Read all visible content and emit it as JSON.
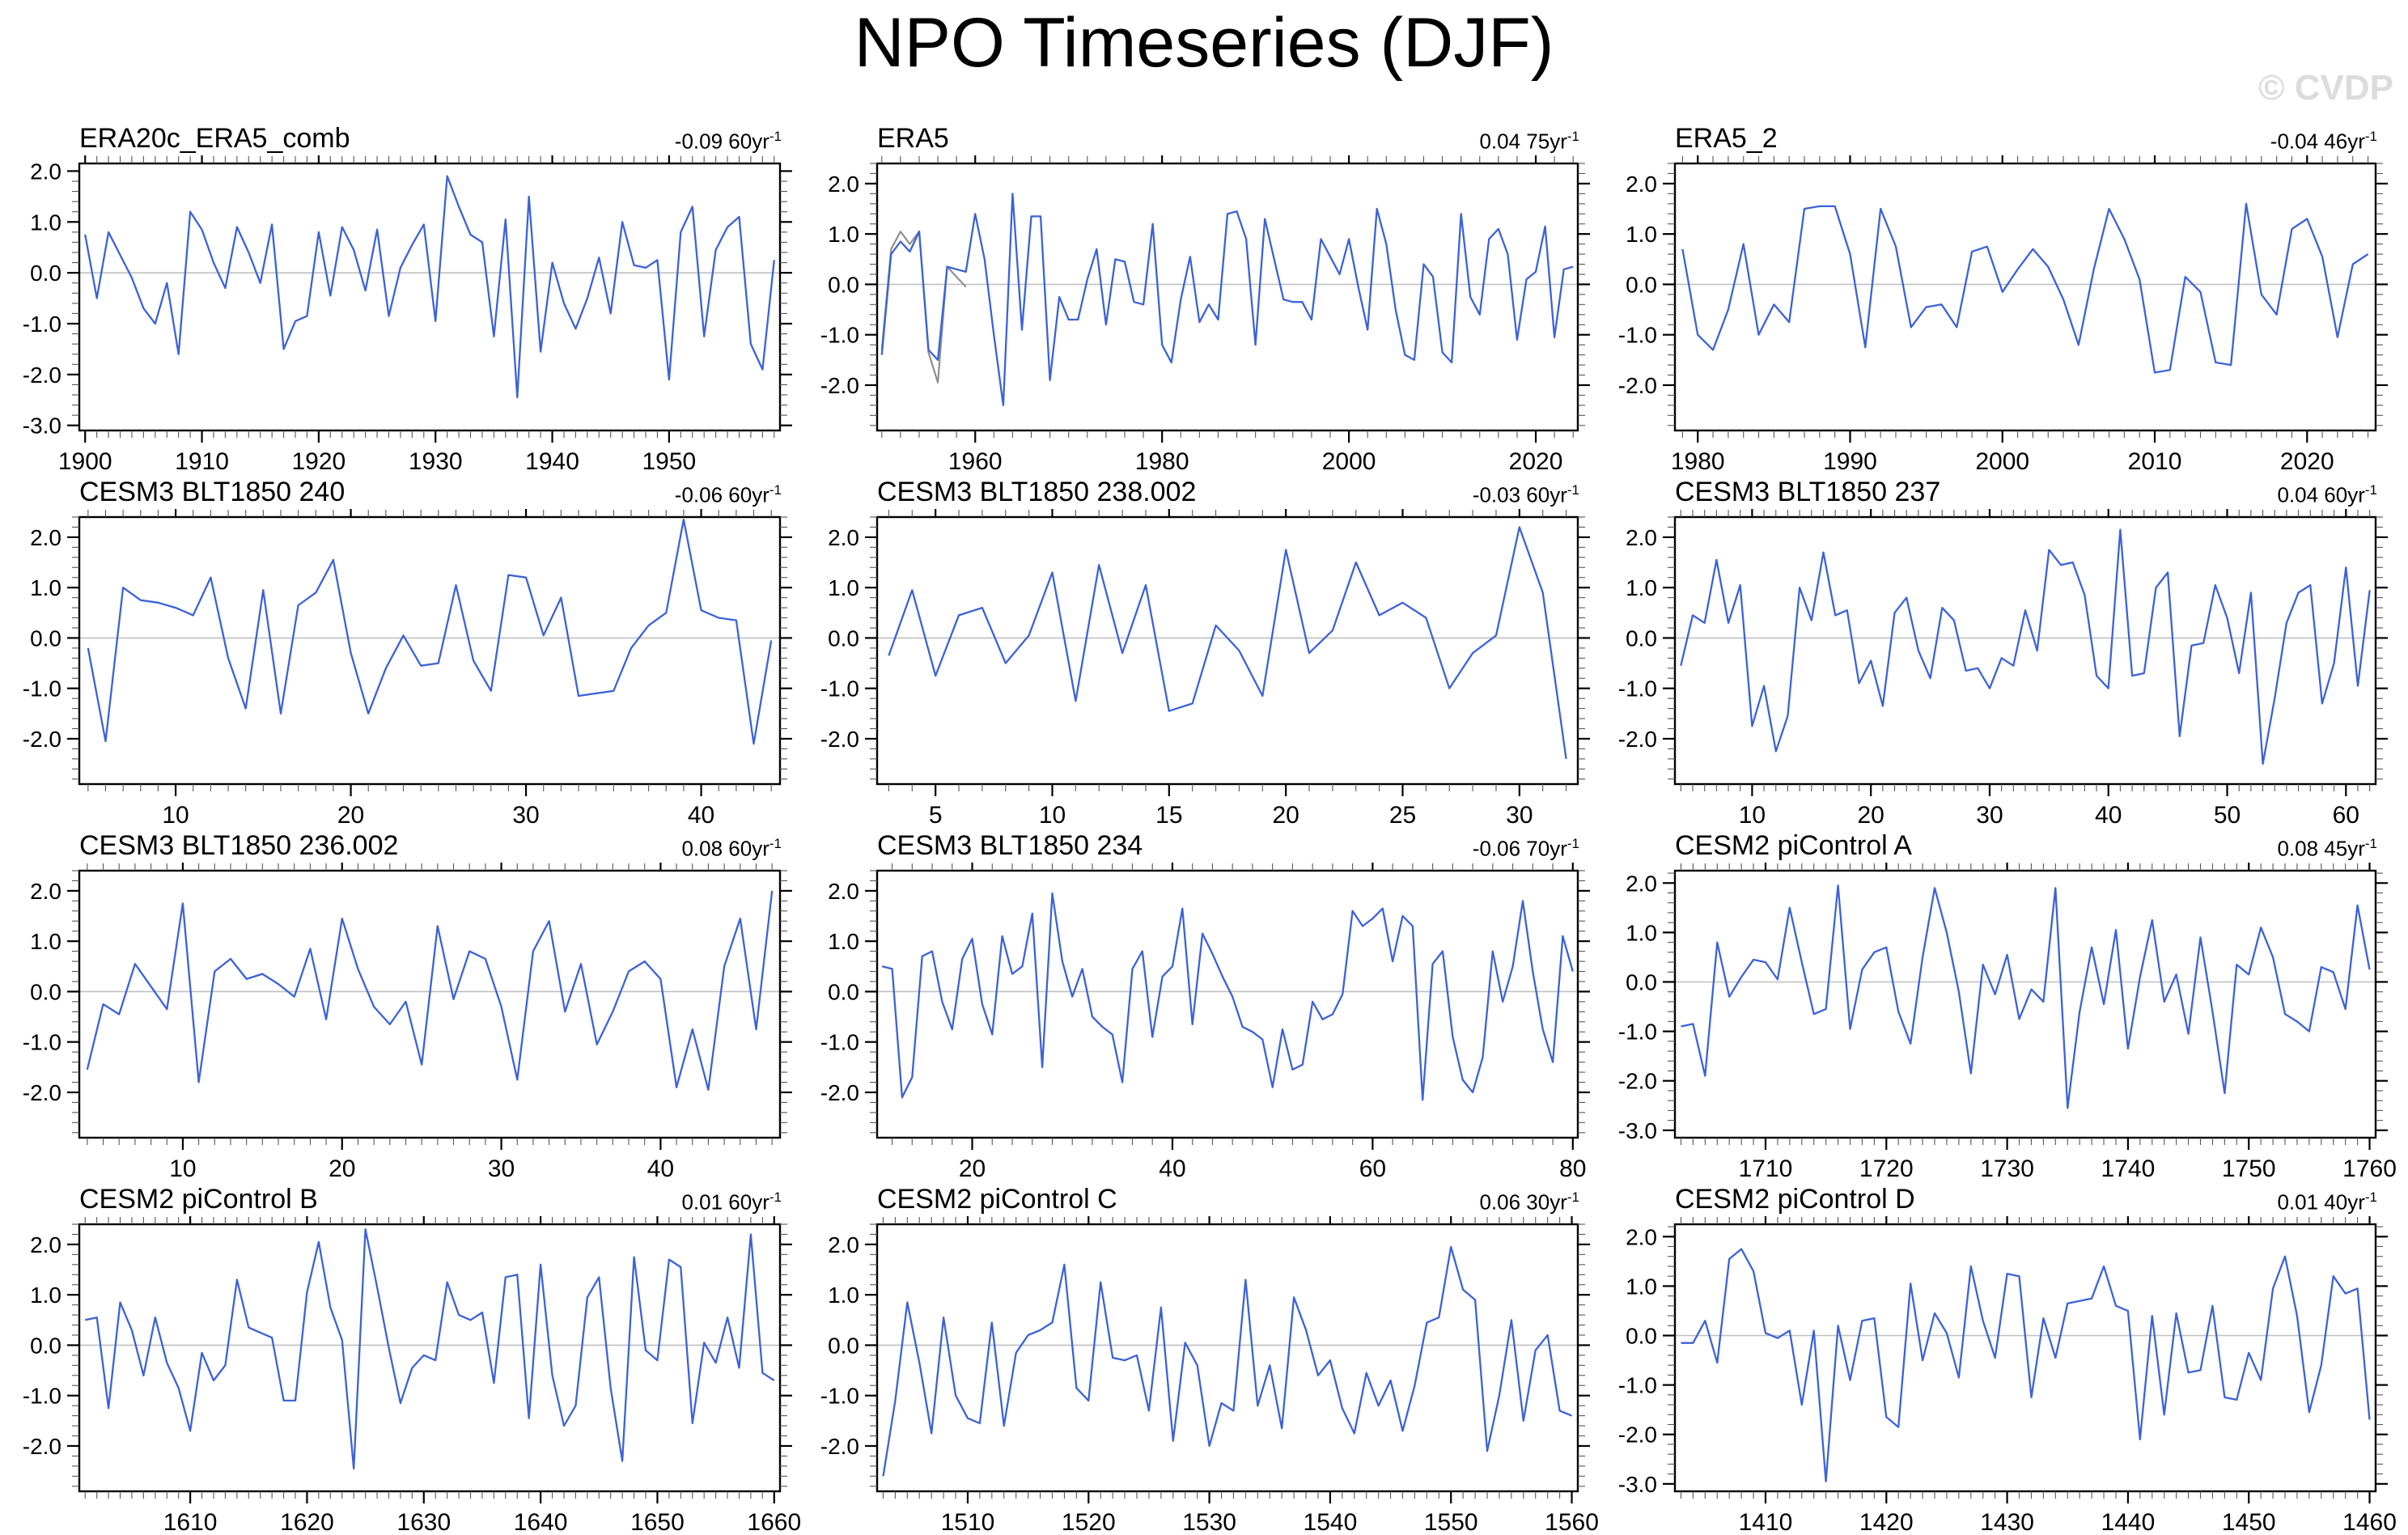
{
  "page": {
    "title": "NPO Timeseries (DJF)",
    "watermark": "© CVDP"
  },
  "colors": {
    "line": "#3c62d6",
    "gray_line": "#8f8f8f",
    "zero_line": "#c0c0c0",
    "axis": "#000000",
    "minor_tick": "#555555",
    "watermark": "#dcdcdc"
  },
  "chart_data": [
    {
      "type": "line",
      "title": "ERA20c_ERA5_comb",
      "trend": {
        "value": "-0.09",
        "per": "60yr",
        "exp": "-1"
      },
      "x0": 1900,
      "xlim": [
        1899.5,
        1959.5
      ],
      "ylim": [
        -3.1,
        2.15
      ],
      "xticks": [
        1900,
        1910,
        1920,
        1930,
        1940,
        1950
      ],
      "x_minor_step": 1,
      "yticks": [
        2,
        1,
        0,
        -1,
        -2,
        -3
      ],
      "y_minor_step": 0.2,
      "values": [
        0.75,
        -0.5,
        0.8,
        0.35,
        -0.1,
        -0.7,
        -1.0,
        -0.2,
        -1.6,
        1.2,
        0.85,
        0.2,
        -0.3,
        0.9,
        0.4,
        -0.2,
        0.95,
        -1.5,
        -0.95,
        -0.85,
        0.8,
        -0.45,
        0.9,
        0.45,
        -0.35,
        0.85,
        -0.85,
        0.1,
        0.55,
        0.95,
        -0.95,
        1.9,
        1.3,
        0.75,
        0.6,
        -1.25,
        1.05,
        -2.45,
        1.5,
        -1.55,
        0.2,
        -0.6,
        -1.1,
        -0.5,
        0.3,
        -0.8,
        1.0,
        0.15,
        0.1,
        0.25,
        -2.1,
        0.8,
        1.3,
        -1.25,
        0.45,
        0.9,
        1.1,
        -1.4,
        -1.9,
        0.25
      ]
    },
    {
      "type": "line",
      "title": "ERA5",
      "trend": {
        "value": "0.04",
        "per": "75yr",
        "exp": "-1"
      },
      "x0": 1950,
      "xlim": [
        1949.5,
        2024.5
      ],
      "ylim": [
        -2.9,
        2.4
      ],
      "xticks": [
        1960,
        1980,
        2000,
        2020
      ],
      "x_minor_step": 2,
      "yticks": [
        2,
        1,
        0,
        -1,
        -2
      ],
      "y_minor_step": 0.2,
      "values": [
        -1.4,
        0.6,
        0.85,
        0.65,
        1.05,
        -1.3,
        -1.5,
        0.35,
        0.3,
        0.25,
        1.4,
        0.5,
        -1.0,
        -2.4,
        1.8,
        -0.9,
        1.35,
        1.35,
        -1.9,
        -0.25,
        -0.7,
        -0.7,
        0.1,
        0.7,
        -0.8,
        0.5,
        0.45,
        -0.35,
        -0.4,
        1.2,
        -1.2,
        -1.55,
        -0.3,
        0.55,
        -0.75,
        -0.4,
        -0.7,
        1.4,
        1.45,
        0.9,
        -1.2,
        1.3,
        0.5,
        -0.3,
        -0.35,
        -0.35,
        -0.7,
        0.9,
        0.55,
        0.2,
        0.9,
        -0.05,
        -0.9,
        1.5,
        0.8,
        -0.5,
        -1.4,
        -1.5,
        0.4,
        0.15,
        -1.35,
        -1.55,
        1.4,
        -0.25,
        -0.6,
        0.9,
        1.1,
        0.6,
        -1.1,
        0.1,
        0.25,
        1.15,
        -1.05,
        0.3,
        0.35
      ],
      "gray_x0": 1950,
      "gray_values": [
        -1.3,
        0.7,
        1.05,
        0.8,
        1.05,
        -1.35,
        -1.95,
        0.35,
        0.15,
        -0.05
      ]
    },
    {
      "type": "line",
      "title": "ERA5_2",
      "trend": {
        "value": "-0.04",
        "per": "46yr",
        "exp": "-1"
      },
      "x0": 1979,
      "xlim": [
        1978.5,
        2024.5
      ],
      "ylim": [
        -2.9,
        2.4
      ],
      "xticks": [
        1980,
        1990,
        2000,
        2010,
        2020
      ],
      "x_minor_step": 1,
      "yticks": [
        2,
        1,
        0,
        -1,
        -2
      ],
      "y_minor_step": 0.2,
      "values": [
        0.7,
        -1.0,
        -1.3,
        -0.5,
        0.8,
        -1.0,
        -0.4,
        -0.75,
        1.5,
        1.55,
        1.55,
        0.6,
        -1.25,
        1.5,
        0.75,
        -0.85,
        -0.45,
        -0.4,
        -0.85,
        0.65,
        0.75,
        -0.15,
        0.3,
        0.7,
        0.35,
        -0.3,
        -1.2,
        0.3,
        1.5,
        0.9,
        0.1,
        -1.75,
        -1.7,
        0.15,
        -0.15,
        -1.55,
        -1.6,
        1.6,
        -0.2,
        -0.6,
        1.1,
        1.3,
        0.55,
        -1.05,
        0.4,
        0.6
      ]
    },
    {
      "type": "line",
      "title": "CESM3 BLT1850 240",
      "trend": {
        "value": "-0.06",
        "per": "60yr",
        "exp": "-1"
      },
      "x0": 5,
      "xlim": [
        4.5,
        44.5
      ],
      "ylim": [
        -2.9,
        2.4
      ],
      "xticks": [
        10,
        20,
        30,
        40
      ],
      "x_minor_step": 1,
      "yticks": [
        2,
        1,
        0,
        -1,
        -2
      ],
      "y_minor_step": 0.2,
      "values": [
        -0.2,
        -2.05,
        1.0,
        0.75,
        0.7,
        0.6,
        0.45,
        1.2,
        -0.4,
        -1.4,
        0.95,
        -1.5,
        0.65,
        0.9,
        1.55,
        -0.3,
        -1.5,
        -0.6,
        0.05,
        -0.55,
        -0.5,
        1.05,
        -0.45,
        -1.05,
        1.25,
        1.2,
        0.05,
        0.8,
        -1.15,
        -1.1,
        -1.05,
        -0.2,
        0.25,
        0.5,
        2.35,
        0.55,
        0.4,
        0.35,
        -2.1,
        -0.05
      ]
    },
    {
      "type": "line",
      "title": "CESM3 BLT1850 238.002",
      "trend": {
        "value": "-0.03",
        "per": "60yr",
        "exp": "-1"
      },
      "x0": 3,
      "xlim": [
        2.5,
        32.5
      ],
      "ylim": [
        -2.9,
        2.4
      ],
      "xticks": [
        5,
        10,
        15,
        20,
        25,
        30
      ],
      "x_minor_step": 1,
      "yticks": [
        2,
        1,
        0,
        -1,
        -2
      ],
      "y_minor_step": 0.2,
      "values": [
        -0.35,
        0.95,
        -0.75,
        0.45,
        0.6,
        -0.5,
        0.05,
        1.3,
        -1.25,
        1.45,
        -0.3,
        1.05,
        -1.45,
        -1.3,
        0.25,
        -0.25,
        -1.15,
        1.75,
        -0.3,
        0.15,
        1.5,
        0.45,
        0.7,
        0.4,
        -1.0,
        -0.3,
        0.05,
        2.2,
        0.9,
        -2.4
      ]
    },
    {
      "type": "line",
      "title": "CESM3 BLT1850 237",
      "trend": {
        "value": "0.04",
        "per": "60yr",
        "exp": "-1"
      },
      "x0": 4,
      "xlim": [
        3.5,
        62.5
      ],
      "ylim": [
        -2.9,
        2.4
      ],
      "xticks": [
        10,
        20,
        30,
        40,
        50,
        60
      ],
      "x_minor_step": 1,
      "yticks": [
        2,
        1,
        0,
        -1,
        -2
      ],
      "y_minor_step": 0.2,
      "values": [
        -0.55,
        0.45,
        0.3,
        1.55,
        0.3,
        1.05,
        -1.75,
        -0.95,
        -2.25,
        -1.55,
        1.0,
        0.35,
        1.7,
        0.45,
        0.55,
        -0.9,
        -0.45,
        -1.35,
        0.5,
        0.8,
        -0.25,
        -0.8,
        0.6,
        0.35,
        -0.65,
        -0.6,
        -1.0,
        -0.4,
        -0.55,
        0.55,
        -0.25,
        1.75,
        1.45,
        1.5,
        0.85,
        -0.75,
        -1.0,
        2.15,
        -0.75,
        -0.7,
        1.0,
        1.3,
        -1.95,
        -0.15,
        -0.1,
        1.05,
        0.4,
        -0.7,
        0.9,
        -2.5,
        -1.2,
        0.3,
        0.9,
        1.05,
        -1.3,
        -0.5,
        1.4,
        -0.95,
        0.95
      ]
    },
    {
      "type": "line",
      "title": "CESM3 BLT1850 236.002",
      "trend": {
        "value": "0.08",
        "per": "60yr",
        "exp": "-1"
      },
      "x0": 4,
      "xlim": [
        3.5,
        47.5
      ],
      "ylim": [
        -2.9,
        2.4
      ],
      "xticks": [
        10,
        20,
        30,
        40
      ],
      "x_minor_step": 1,
      "yticks": [
        2,
        1,
        0,
        -1,
        -2
      ],
      "y_minor_step": 0.2,
      "values": [
        -1.55,
        -0.25,
        -0.45,
        0.55,
        0.1,
        -0.35,
        1.75,
        -1.8,
        0.4,
        0.65,
        0.25,
        0.35,
        0.15,
        -0.1,
        0.85,
        -0.55,
        1.45,
        0.45,
        -0.3,
        -0.65,
        -0.2,
        -1.45,
        1.3,
        -0.15,
        0.8,
        0.65,
        -0.3,
        -1.75,
        0.8,
        1.4,
        -0.4,
        0.55,
        -1.05,
        -0.4,
        0.4,
        0.6,
        0.25,
        -1.9,
        -0.75,
        -1.95,
        0.5,
        1.45,
        -0.75,
        2.0
      ]
    },
    {
      "type": "line",
      "title": "CESM3 BLT1850 234",
      "trend": {
        "value": "-0.06",
        "per": "70yr",
        "exp": "-1"
      },
      "x0": 11,
      "xlim": [
        10.5,
        80.5
      ],
      "ylim": [
        -2.9,
        2.4
      ],
      "xticks": [
        20,
        40,
        60,
        80
      ],
      "x_minor_step": 2,
      "yticks": [
        2,
        1,
        0,
        -1,
        -2
      ],
      "y_minor_step": 0.2,
      "values": [
        0.5,
        0.45,
        -2.1,
        -1.7,
        0.7,
        0.8,
        -0.2,
        -0.75,
        0.65,
        1.05,
        -0.25,
        -0.85,
        1.1,
        0.35,
        0.5,
        1.55,
        -1.5,
        1.95,
        0.6,
        -0.1,
        0.45,
        -0.5,
        -0.7,
        -0.85,
        -1.8,
        0.45,
        0.8,
        -0.9,
        0.3,
        0.5,
        1.65,
        -0.65,
        1.15,
        0.75,
        0.3,
        -0.1,
        -0.7,
        -0.8,
        -0.95,
        -1.9,
        -0.75,
        -1.55,
        -1.45,
        -0.2,
        -0.55,
        -0.45,
        -0.05,
        1.6,
        1.3,
        1.45,
        1.65,
        0.6,
        1.5,
        1.3,
        -2.15,
        0.55,
        0.8,
        -0.9,
        -1.75,
        -2.0,
        -1.3,
        0.8,
        -0.2,
        0.5,
        1.8,
        0.4,
        -0.75,
        -1.4,
        1.1,
        0.4
      ]
    },
    {
      "type": "line",
      "title": "CESM2 piControl A",
      "trend": {
        "value": "0.08",
        "per": "45yr",
        "exp": "-1"
      },
      "x0": 1703,
      "xlim": [
        1702.5,
        1760.5
      ],
      "ylim": [
        -3.15,
        2.25
      ],
      "xticks": [
        1710,
        1720,
        1730,
        1740,
        1750,
        1760
      ],
      "x_minor_step": 1,
      "yticks": [
        2,
        1,
        0,
        -1,
        -2,
        -3
      ],
      "y_minor_step": 0.2,
      "values": [
        -0.9,
        -0.85,
        -1.9,
        0.8,
        -0.3,
        0.1,
        0.45,
        0.4,
        0.05,
        1.5,
        0.4,
        -0.65,
        -0.55,
        1.95,
        -0.95,
        0.25,
        0.6,
        0.7,
        -0.6,
        -1.25,
        0.5,
        1.9,
        1.0,
        -0.2,
        -1.85,
        0.35,
        -0.25,
        0.55,
        -0.75,
        -0.15,
        -0.4,
        1.9,
        -2.55,
        -0.6,
        0.7,
        -0.45,
        1.05,
        -1.35,
        0.1,
        1.25,
        -0.4,
        0.15,
        -1.05,
        0.9,
        -0.6,
        -2.25,
        0.35,
        0.15,
        1.1,
        0.5,
        -0.65,
        -0.8,
        -1.0,
        0.3,
        0.2,
        -0.55,
        1.55,
        0.25
      ]
    },
    {
      "type": "line",
      "title": "CESM2 piControl B",
      "trend": {
        "value": "0.01",
        "per": "60yr",
        "exp": "-1"
      },
      "x0": 1601,
      "xlim": [
        1600.5,
        1660.5
      ],
      "ylim": [
        -2.9,
        2.4
      ],
      "xticks": [
        1610,
        1620,
        1630,
        1640,
        1650,
        1660
      ],
      "x_minor_step": 1,
      "yticks": [
        2,
        1,
        0,
        -1,
        -2
      ],
      "y_minor_step": 0.2,
      "values": [
        0.5,
        0.55,
        -1.25,
        0.85,
        0.3,
        -0.6,
        0.55,
        -0.35,
        -0.85,
        -1.7,
        -0.15,
        -0.7,
        -0.4,
        1.3,
        0.35,
        0.25,
        0.15,
        -1.1,
        -1.1,
        1.05,
        2.05,
        0.75,
        0.1,
        -2.45,
        2.3,
        1.15,
        -0.05,
        -1.15,
        -0.45,
        -0.2,
        -0.3,
        1.25,
        0.6,
        0.5,
        0.65,
        -0.75,
        1.35,
        1.4,
        -1.45,
        1.6,
        -0.6,
        -1.6,
        -1.2,
        0.95,
        1.35,
        -0.85,
        -2.3,
        1.75,
        -0.1,
        -0.3,
        1.7,
        1.55,
        -1.55,
        0.05,
        -0.35,
        0.55,
        -0.45,
        2.2,
        -0.55,
        -0.7
      ]
    },
    {
      "type": "line",
      "title": "CESM2 piControl C",
      "trend": {
        "value": "0.06",
        "per": "30yr",
        "exp": "-1"
      },
      "x0": 1503,
      "xlim": [
        1502.5,
        1560.5
      ],
      "ylim": [
        -2.9,
        2.4
      ],
      "xticks": [
        1510,
        1520,
        1530,
        1540,
        1550,
        1560
      ],
      "x_minor_step": 1,
      "yticks": [
        2,
        1,
        0,
        -1,
        -2
      ],
      "y_minor_step": 0.2,
      "values": [
        -2.6,
        -1.1,
        0.85,
        -0.35,
        -1.75,
        0.55,
        -1.0,
        -1.45,
        -1.55,
        0.45,
        -1.6,
        -0.15,
        0.2,
        0.3,
        0.45,
        1.6,
        -0.85,
        -1.1,
        1.25,
        -0.25,
        -0.3,
        -0.2,
        -1.3,
        0.75,
        -1.9,
        0.05,
        -0.4,
        -2.0,
        -1.15,
        -1.3,
        1.3,
        -1.2,
        -0.4,
        -1.65,
        0.95,
        0.3,
        -0.6,
        -0.3,
        -1.25,
        -1.75,
        -0.55,
        -1.2,
        -0.7,
        -1.7,
        -0.8,
        0.45,
        0.55,
        1.95,
        1.1,
        0.9,
        -2.1,
        -1.0,
        0.5,
        -1.5,
        -0.1,
        0.2,
        -1.3,
        -1.4
      ]
    },
    {
      "type": "line",
      "title": "CESM2 piControl D",
      "trend": {
        "value": "0.01",
        "per": "40yr",
        "exp": "-1"
      },
      "x0": 1403,
      "xlim": [
        1402.5,
        1460.5
      ],
      "ylim": [
        -3.15,
        2.25
      ],
      "xticks": [
        1410,
        1420,
        1430,
        1440,
        1450,
        1460
      ],
      "x_minor_step": 1,
      "yticks": [
        2,
        1,
        0,
        -1,
        -2,
        -3
      ],
      "y_minor_step": 0.2,
      "values": [
        -0.15,
        -0.15,
        0.3,
        -0.55,
        1.55,
        1.75,
        1.3,
        0.05,
        -0.05,
        0.1,
        -1.4,
        0.1,
        -2.95,
        0.2,
        -0.9,
        0.3,
        0.35,
        -1.65,
        -1.85,
        1.05,
        -0.5,
        0.45,
        0.05,
        -0.85,
        1.4,
        0.3,
        -0.45,
        1.25,
        1.2,
        -1.25,
        0.35,
        -0.45,
        0.65,
        0.7,
        0.75,
        1.4,
        0.6,
        0.5,
        -2.1,
        0.4,
        -1.6,
        0.45,
        -0.75,
        -0.7,
        0.6,
        -1.25,
        -1.3,
        -0.35,
        -0.9,
        0.95,
        1.6,
        0.4,
        -1.55,
        -0.6,
        1.2,
        0.85,
        0.95,
        -1.7
      ]
    }
  ]
}
